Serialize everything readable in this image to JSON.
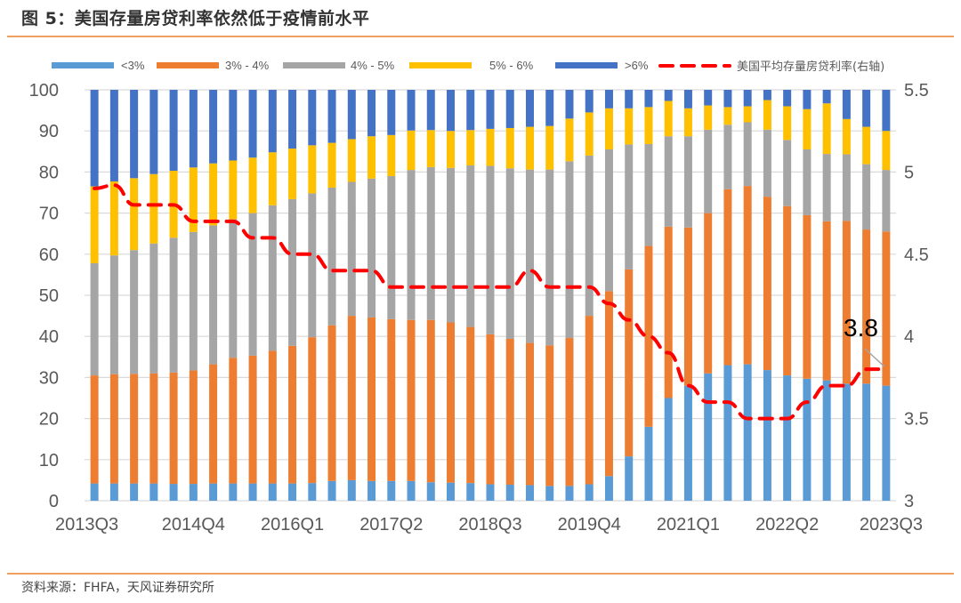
{
  "title": "图 5：美国存量房贷利率依然低于疫情前水平",
  "source": "资料来源：FHFA，天风证券研究所",
  "colors": {
    "lt3": "#5b9bd5",
    "r3_4": "#ed7d31",
    "r4_5": "#a5a5a5",
    "r5_6": "#ffc000",
    "gt6": "#4472c4",
    "line": "#ff0000",
    "grid": "#d9d9d9",
    "rule": "#f0a060"
  },
  "chart_data": {
    "type": "bar",
    "stacked": true,
    "title": "图 5：美国存量房贷利率依然低于疫情前水平",
    "xlabel": "",
    "ylabel": "",
    "ylim": [
      0,
      100
    ],
    "y2lim": [
      3,
      5.5
    ],
    "yticks": [
      "0",
      "10",
      "20",
      "30",
      "40",
      "50",
      "60",
      "70",
      "80",
      "90",
      "100"
    ],
    "y2ticks": [
      "3",
      "3.5",
      "4",
      "4.5",
      "5",
      "5.5"
    ],
    "xtick_labels": [
      "2013Q3",
      "2014Q4",
      "2016Q1",
      "2017Q2",
      "2018Q3",
      "2019Q4",
      "2021Q1",
      "2022Q2",
      "2023Q3"
    ],
    "grid": true,
    "legend_position": "top",
    "categories": [
      "2013Q3",
      "2013Q4",
      "2014Q1",
      "2014Q2",
      "2014Q3",
      "2014Q4",
      "2015Q1",
      "2015Q2",
      "2015Q3",
      "2015Q4",
      "2016Q1",
      "2016Q2",
      "2016Q3",
      "2016Q4",
      "2017Q1",
      "2017Q2",
      "2017Q3",
      "2017Q4",
      "2018Q1",
      "2018Q2",
      "2018Q3",
      "2018Q4",
      "2019Q1",
      "2019Q2",
      "2019Q3",
      "2019Q4",
      "2020Q1",
      "2020Q2",
      "2020Q3",
      "2020Q4",
      "2021Q1",
      "2021Q2",
      "2021Q3",
      "2021Q4",
      "2022Q1",
      "2022Q2",
      "2022Q3",
      "2022Q4",
      "2023Q1",
      "2023Q2",
      "2023Q3"
    ],
    "series": [
      {
        "name": "<3%",
        "color_key": "lt3",
        "values": [
          4.2,
          4.2,
          4.2,
          4.2,
          4.1,
          4.1,
          4.2,
          4.2,
          4.2,
          4.2,
          4.2,
          4.3,
          4.8,
          5.0,
          4.8,
          4.8,
          4.8,
          4.5,
          4.4,
          4.3,
          4.0,
          3.9,
          3.8,
          3.6,
          3.6,
          4.0,
          6.0,
          10.8,
          18.0,
          25.0,
          28.0,
          31.0,
          33.0,
          33.2,
          31.8,
          30.5,
          29.7,
          29.3,
          28.5,
          28.5,
          28.0
        ]
      },
      {
        "name": "3% - 4%",
        "color_key": "r3_4",
        "values": [
          26.3,
          26.6,
          26.7,
          26.8,
          27.1,
          27.6,
          29.0,
          30.6,
          31.1,
          32.3,
          33.5,
          35.5,
          37.9,
          40.0,
          39.8,
          39.4,
          39.2,
          39.5,
          39.0,
          38.0,
          36.5,
          35.5,
          34.6,
          34.2,
          36.0,
          41.0,
          45.0,
          45.5,
          44.0,
          41.7,
          38.5,
          39.0,
          42.8,
          43.4,
          42.2,
          41.2,
          39.8,
          38.7,
          39.6,
          37.5,
          37.5
        ]
      },
      {
        "name": "4% - 5%",
        "color_key": "r4_5",
        "values": [
          27.3,
          28.9,
          30.1,
          31.6,
          32.8,
          33.7,
          33.8,
          33.7,
          34.7,
          35.4,
          35.7,
          35.0,
          33.5,
          32.6,
          33.8,
          34.8,
          36.5,
          37.2,
          37.6,
          39.3,
          41.0,
          41.5,
          42.2,
          42.8,
          43.0,
          39.0,
          34.5,
          30.4,
          24.8,
          22.0,
          22.2,
          20.3,
          15.7,
          15.5,
          16.3,
          16.1,
          16.0,
          16.4,
          16.2,
          15.9,
          15.0
        ]
      },
      {
        "name": "5% - 6%",
        "color_key": "r5_6",
        "values": [
          18.7,
          18.0,
          17.5,
          16.9,
          16.3,
          15.7,
          15.1,
          14.3,
          13.5,
          12.9,
          12.3,
          11.7,
          10.9,
          10.4,
          10.3,
          10.0,
          9.6,
          9.0,
          9.0,
          8.6,
          9.0,
          9.8,
          10.4,
          10.6,
          10.4,
          10.5,
          10.0,
          8.8,
          9.0,
          8.6,
          6.8,
          5.9,
          4.3,
          3.9,
          7.2,
          8.2,
          9.8,
          12.3,
          8.6,
          9.1,
          9.5
        ]
      },
      {
        "name": ">6%",
        "color_key": "gt6",
        "values": [
          23.5,
          22.3,
          21.5,
          20.5,
          19.7,
          18.9,
          17.9,
          17.2,
          16.5,
          15.2,
          14.3,
          13.5,
          12.9,
          12.0,
          11.3,
          11.0,
          9.9,
          9.8,
          10.0,
          9.8,
          9.5,
          9.3,
          9.0,
          8.8,
          7.0,
          5.5,
          4.5,
          4.5,
          4.2,
          2.7,
          4.5,
          3.8,
          4.2,
          4.0,
          2.5,
          4.0,
          4.7,
          3.3,
          7.1,
          9.0,
          10.0
        ]
      }
    ],
    "line_series": {
      "name": "美国平均存量房贷利率(右轴)",
      "axis": "right",
      "color_key": "line",
      "values": [
        4.9,
        4.92,
        4.8,
        4.8,
        4.8,
        4.7,
        4.7,
        4.7,
        4.6,
        4.6,
        4.5,
        4.5,
        4.4,
        4.4,
        4.4,
        4.3,
        4.3,
        4.3,
        4.3,
        4.3,
        4.3,
        4.3,
        4.4,
        4.3,
        4.3,
        4.3,
        4.2,
        4.1,
        4.0,
        3.9,
        3.7,
        3.6,
        3.6,
        3.5,
        3.5,
        3.5,
        3.6,
        3.7,
        3.7,
        3.8,
        3.8
      ]
    },
    "annotation": {
      "text": "3.8",
      "category": "2023Q3"
    }
  }
}
